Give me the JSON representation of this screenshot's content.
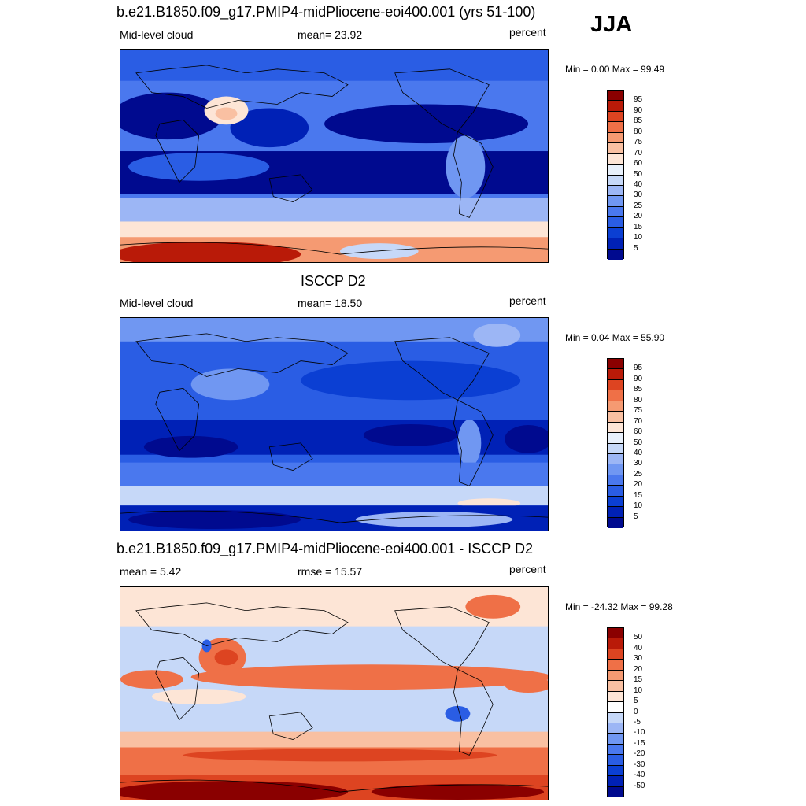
{
  "season": "JJA",
  "panels": [
    {
      "title": "b.e21.B1850.f09_g17.PMIP4-midPliocene-eoi400.001 (yrs 51-100)",
      "left_label": "Mid-level cloud",
      "center_label": "mean=  23.92",
      "right_label": "percent",
      "minmax": "Min =   0.00 Max =  99.49"
    },
    {
      "title": "ISCCP D2",
      "left_label": "Mid-level cloud",
      "center_label": "mean=  18.50",
      "right_label": "percent",
      "minmax": "Min =   0.04 Max =  55.90"
    },
    {
      "title": "b.e21.B1850.f09_g17.PMIP4-midPliocene-eoi400.001 - ISCCP D2",
      "left_label": "mean =   5.42",
      "center_label": "rmse =  15.57",
      "right_label": "percent",
      "minmax": "Min = -24.32 Max =  99.28"
    }
  ],
  "chart_data": [
    {
      "type": "heatmap",
      "title": "b.e21.B1850.f09_g17.PMIP4-midPliocene-eoi400.001 (yrs 51-100)",
      "variable": "Mid-level cloud",
      "units": "percent",
      "mean": 23.92,
      "min": 0.0,
      "max": 99.49,
      "colorbar_levels": [
        5,
        10,
        15,
        20,
        25,
        30,
        40,
        50,
        60,
        70,
        75,
        80,
        85,
        90,
        95
      ],
      "colorbar_colors": [
        "#000a8f",
        "#0021b6",
        "#0b3fd3",
        "#2a5de4",
        "#4a78ee",
        "#7097f2",
        "#9cb6f5",
        "#c6d8f8",
        "#e8f0fb",
        "#fde5d6",
        "#f9c0a2",
        "#f59a72",
        "#ef7047",
        "#dd4421",
        "#b91a08",
        "#8a0000"
      ]
    },
    {
      "type": "heatmap",
      "title": "ISCCP D2",
      "variable": "Mid-level cloud",
      "units": "percent",
      "mean": 18.5,
      "min": 0.04,
      "max": 55.9,
      "colorbar_levels": [
        5,
        10,
        15,
        20,
        25,
        30,
        40,
        50,
        60,
        70,
        75,
        80,
        85,
        90,
        95
      ],
      "colorbar_colors": [
        "#000a8f",
        "#0021b6",
        "#0b3fd3",
        "#2a5de4",
        "#4a78ee",
        "#7097f2",
        "#9cb6f5",
        "#c6d8f8",
        "#e8f0fb",
        "#fde5d6",
        "#f9c0a2",
        "#f59a72",
        "#ef7047",
        "#dd4421",
        "#b91a08",
        "#8a0000"
      ]
    },
    {
      "type": "heatmap",
      "title": "b.e21.B1850.f09_g17.PMIP4-midPliocene-eoi400.001 - ISCCP D2",
      "units": "percent",
      "mean": 5.42,
      "rmse": 15.57,
      "min": -24.32,
      "max": 99.28,
      "colorbar_levels": [
        -50,
        -40,
        -30,
        -20,
        -15,
        -10,
        -5,
        0,
        5,
        10,
        15,
        20,
        30,
        40,
        50
      ],
      "colorbar_colors": [
        "#000a8f",
        "#0021b6",
        "#0b3fd3",
        "#2a5de4",
        "#4a78ee",
        "#7097f2",
        "#9cb6f5",
        "#c6d8f8",
        "#ffffff",
        "#fde5d6",
        "#f9c0a2",
        "#f59a72",
        "#ef7047",
        "#dd4421",
        "#b91a08",
        "#8a0000"
      ]
    }
  ]
}
